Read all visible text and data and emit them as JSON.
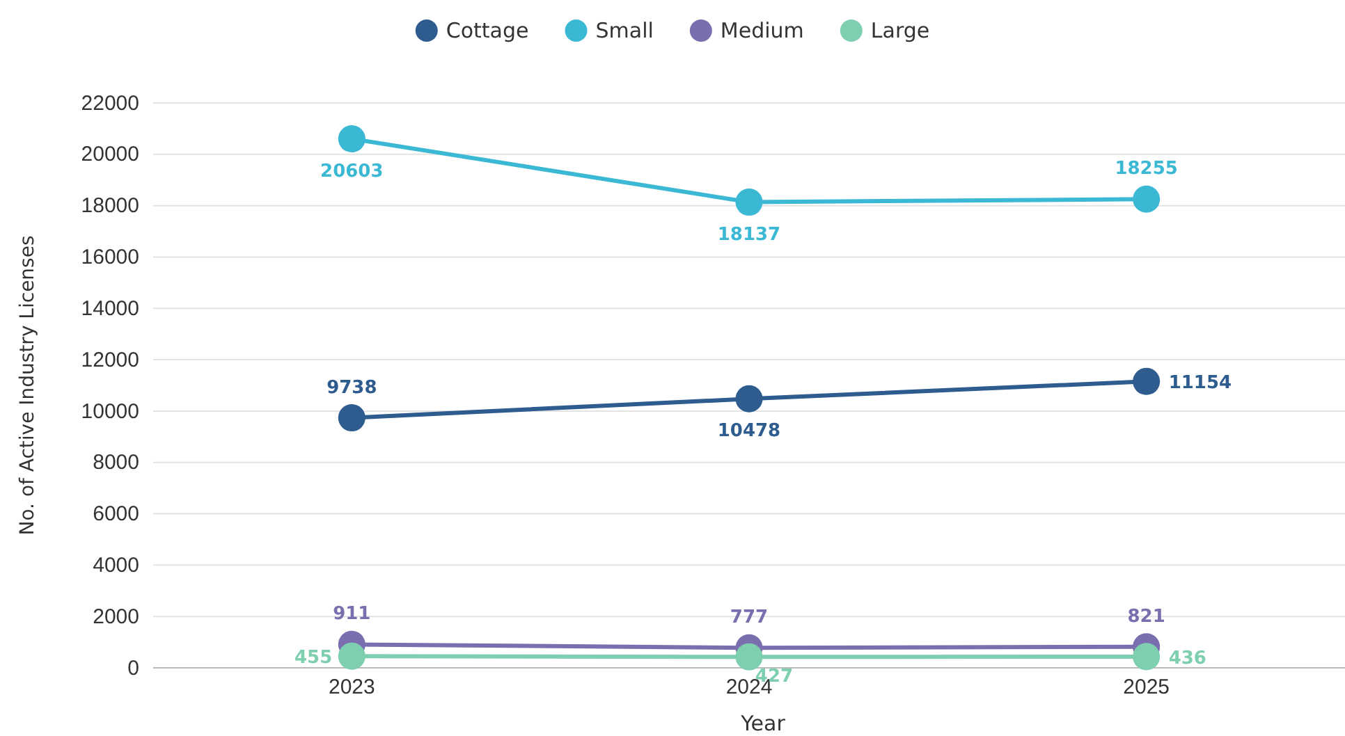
{
  "chart_data": {
    "type": "line",
    "xlabel": "Year",
    "ylabel": "No. of Active Industry Licenses",
    "categories": [
      "2023",
      "2024",
      "2025"
    ],
    "series": [
      {
        "name": "Cottage",
        "color": "#2e5c8f",
        "values": [
          9738,
          10478,
          11154
        ]
      },
      {
        "name": "Small",
        "color": "#3bb8d4",
        "values": [
          20603,
          18137,
          18255
        ]
      },
      {
        "name": "Medium",
        "color": "#7a6eaf",
        "values": [
          911,
          777,
          821
        ]
      },
      {
        "name": "Large",
        "color": "#7dcfb0",
        "values": [
          455,
          427,
          436
        ]
      }
    ],
    "ylim": [
      0,
      22000
    ],
    "yticks": [
      0,
      2000,
      4000,
      6000,
      8000,
      10000,
      12000,
      14000,
      16000,
      18000,
      20000,
      22000
    ],
    "grid": "y",
    "legend": "top",
    "marker": "circle",
    "line_style": "solid",
    "data_labels": true
  }
}
